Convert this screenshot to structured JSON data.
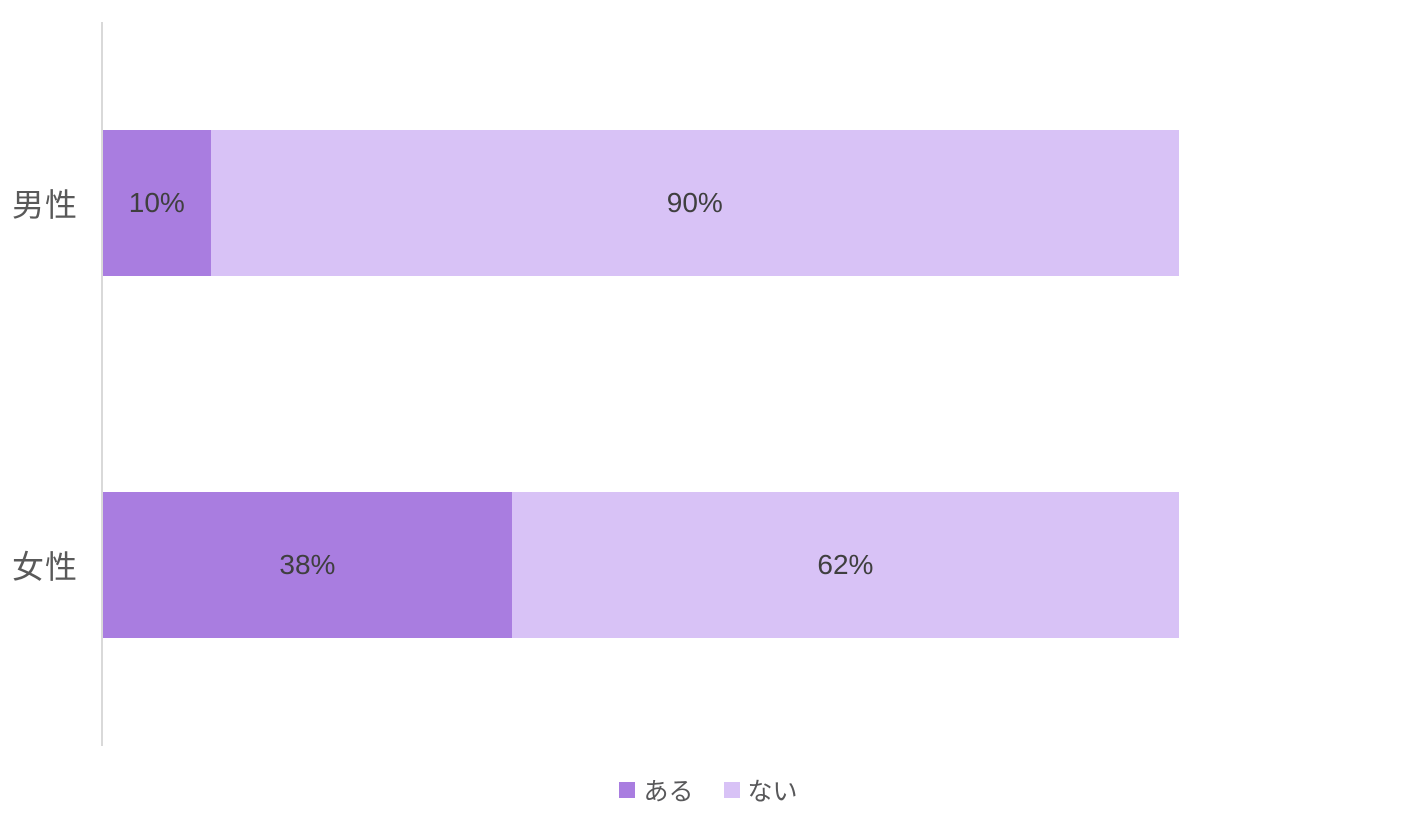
{
  "chart_data": {
    "type": "bar",
    "orientation": "horizontal",
    "stacked": true,
    "stack_total": 100,
    "unit": "%",
    "title": "",
    "xlabel": "",
    "ylabel": "",
    "xlim": [
      0,
      100
    ],
    "grid": false,
    "legend_position": "bottom",
    "categories": [
      "男性",
      "女性"
    ],
    "series": [
      {
        "name": "ある",
        "color": "#a97de0",
        "values": [
          10,
          38
        ],
        "labels": [
          "10%",
          "38%"
        ]
      },
      {
        "name": "ない",
        "color": "#d8c2f6",
        "values": [
          90,
          62
        ],
        "labels": [
          "90%",
          "62%"
        ]
      }
    ]
  },
  "colors": {
    "background": "#ffffff",
    "axis_line": "#d9d9d9",
    "category_label": "#595959",
    "data_label": "#3f3f3f",
    "legend_label": "#58585a"
  }
}
